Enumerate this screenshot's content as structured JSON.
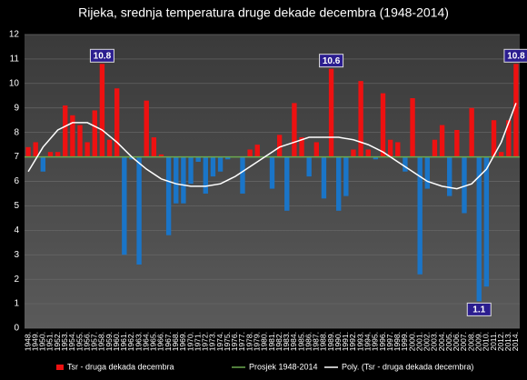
{
  "chart_data": {
    "type": "bar",
    "title": "Rijeka, srednja temperatura druge dekade decembra (1948-2014)",
    "categories": [
      "1948.",
      "1949.",
      "1950.",
      "1951.",
      "1952.",
      "1953.",
      "1954.",
      "1955.",
      "1956.",
      "1957.",
      "1958.",
      "1959.",
      "1960.",
      "1961.",
      "1962.",
      "1963.",
      "1964.",
      "1965.",
      "1966.",
      "1967.",
      "1968.",
      "1969.",
      "1970.",
      "1971.",
      "1972.",
      "1973.",
      "1974.",
      "1975.",
      "1976.",
      "1977.",
      "1978.",
      "1979.",
      "1980.",
      "1981.",
      "1982.",
      "1983.",
      "1984.",
      "1985.",
      "1986.",
      "1987.",
      "1988.",
      "1989.",
      "1990.",
      "1991.",
      "1992.",
      "1993.",
      "1994.",
      "1995.",
      "1996.",
      "1997.",
      "1998.",
      "1999.",
      "2000.",
      "2001.",
      "2002.",
      "2003.",
      "2004.",
      "2005.",
      "2006.",
      "2007.",
      "2008.",
      "2009.",
      "2010.",
      "2011.",
      "2012.",
      "2013.",
      "2014."
    ],
    "series": [
      {
        "name": "Tsr - druga dekada decembra",
        "color": "#ee1111",
        "below_color": "#1a75c8",
        "values": [
          7.4,
          7.6,
          6.4,
          7.2,
          7.2,
          9.1,
          8.7,
          8.3,
          7.6,
          8.9,
          10.8,
          7.7,
          9.8,
          3.0,
          6.9,
          2.6,
          9.3,
          7.8,
          7.1,
          3.8,
          5.1,
          5.1,
          5.9,
          6.8,
          5.5,
          6.2,
          6.4,
          6.9,
          7.0,
          5.5,
          7.3,
          7.5,
          7.0,
          5.7,
          7.9,
          4.8,
          9.2,
          7.8,
          6.2,
          7.6,
          5.3,
          10.6,
          4.8,
          5.4,
          7.3,
          10.1,
          7.3,
          6.9,
          9.6,
          7.7,
          7.6,
          6.4,
          9.4,
          2.2,
          5.7,
          7.7,
          8.3,
          5.4,
          8.1,
          4.7,
          9.0,
          1.1,
          1.7,
          8.5,
          7.2,
          8.5,
          10.8
        ],
        "value_labels": [
          null,
          null,
          null,
          null,
          null,
          null,
          null,
          null,
          null,
          null,
          "10.8",
          null,
          null,
          null,
          null,
          null,
          null,
          null,
          null,
          null,
          null,
          null,
          null,
          null,
          null,
          null,
          null,
          null,
          null,
          null,
          null,
          null,
          null,
          null,
          null,
          null,
          null,
          null,
          null,
          null,
          null,
          "10.6",
          null,
          null,
          null,
          null,
          null,
          null,
          null,
          null,
          null,
          null,
          null,
          null,
          null,
          null,
          null,
          null,
          null,
          null,
          null,
          "1.1",
          null,
          null,
          null,
          null,
          "10.8"
        ]
      },
      {
        "name": "Prosjek 1948-2014",
        "color": "#6aa84f",
        "baseline": 7
      },
      {
        "name": "Poly. (Tsr - druga dekada decembra)",
        "color": "#ffffff",
        "x": [
          "1948.",
          "1950.",
          "1952.",
          "1954.",
          "1956.",
          "1958.",
          "1960.",
          "1962.",
          "1964.",
          "1966.",
          "1968.",
          "1970.",
          "1972.",
          "1974.",
          "1976.",
          "1978.",
          "1980.",
          "1982.",
          "1984.",
          "1986.",
          "1988.",
          "1990.",
          "1992.",
          "1994.",
          "1996.",
          "1998.",
          "2000.",
          "2002.",
          "2004.",
          "2006.",
          "2008.",
          "2010.",
          "2012.",
          "2014."
        ],
        "values": [
          6.4,
          7.4,
          8.1,
          8.4,
          8.4,
          8.1,
          7.6,
          7.0,
          6.5,
          6.1,
          5.9,
          5.8,
          5.8,
          5.9,
          6.2,
          6.6,
          7.0,
          7.4,
          7.6,
          7.8,
          7.8,
          7.8,
          7.7,
          7.5,
          7.2,
          6.8,
          6.4,
          6.0,
          5.8,
          5.7,
          5.9,
          6.5,
          7.6,
          9.2
        ]
      }
    ],
    "ylim": [
      0,
      12
    ],
    "yticks": [
      0,
      1,
      2,
      3,
      4,
      5,
      6,
      7,
      8,
      9,
      10,
      11,
      12
    ],
    "grid": true
  }
}
